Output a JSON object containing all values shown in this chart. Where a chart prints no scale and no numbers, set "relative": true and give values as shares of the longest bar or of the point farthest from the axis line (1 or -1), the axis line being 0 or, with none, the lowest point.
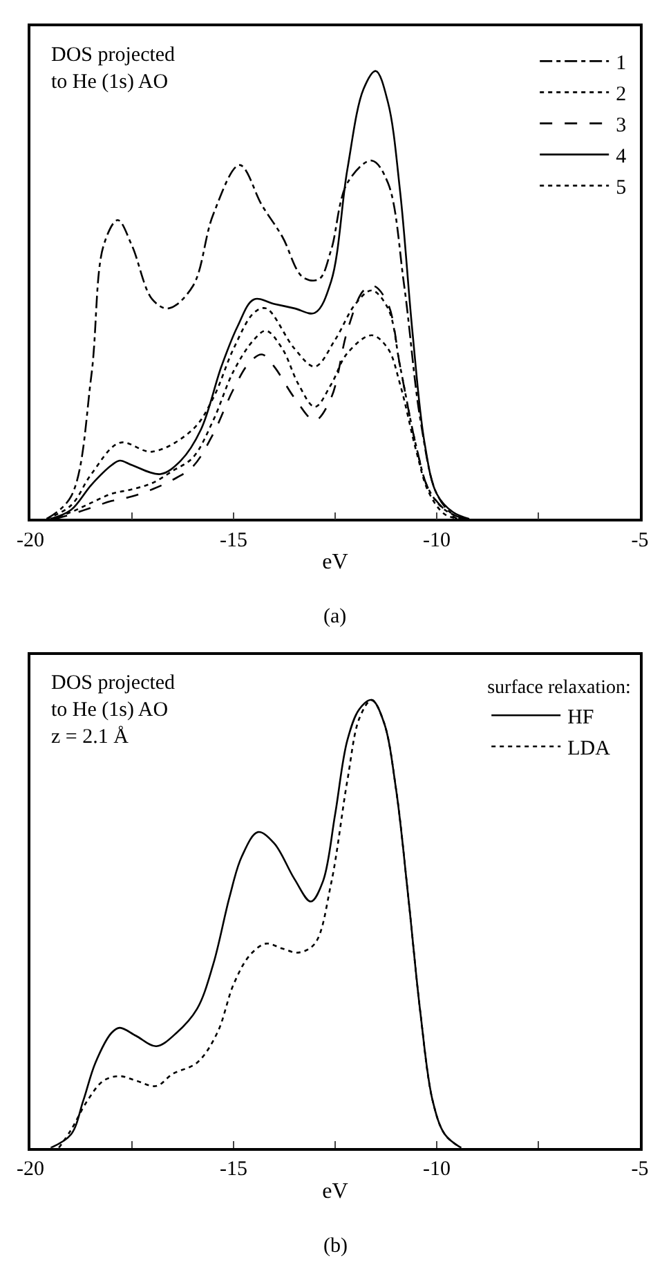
{
  "chart_data": [
    {
      "type": "line",
      "title": "(a)",
      "xlabel": "eV",
      "relative": true,
      "legend": "top right",
      "xlim": [
        -20,
        -5
      ],
      "xticks": [
        -20,
        {
          "value": -17.5,
          "label": null
        },
        -15,
        {
          "value": -12.5,
          "label": null
        },
        -10,
        {
          "value": -7.5,
          "label": null
        },
        -5
      ],
      "annotations": [
        "DOS projected\nto He (1s) AO"
      ],
      "series": [
        {
          "name": "1",
          "color": "#000000",
          "line_style": "dashdot",
          "x": [
            -19.6,
            -19.0,
            -18.5,
            -18.2,
            -17.85,
            -17.5,
            -17.0,
            -16.6,
            -16.0,
            -15.5,
            -14.85,
            -14.3,
            -13.8,
            -13.3,
            -12.9,
            -12.6,
            -12.2,
            -11.6,
            -11.2,
            -10.8,
            -10.4,
            -10.0,
            -9.6,
            -9.2
          ],
          "values": [
            0,
            0.05,
            0.32,
            0.61,
            0.667,
            0.61,
            0.49,
            0.47,
            0.52,
            0.68,
            0.79,
            0.7,
            0.63,
            0.54,
            0.535,
            0.6,
            0.75,
            0.8,
            0.75,
            0.52,
            0.22,
            0.056,
            0.01,
            0
          ]
        },
        {
          "name": "2",
          "color": "#000000",
          "line_style": "dotted",
          "x": [
            -19.5,
            -19.0,
            -18.5,
            -18.0,
            -17.5,
            -17.0,
            -16.5,
            -16.0,
            -15.5,
            -15.0,
            -14.5,
            -14.2,
            -13.8,
            -13.4,
            -13.0,
            -12.6,
            -12.2,
            -11.6,
            -11.2,
            -10.9,
            -10.5,
            -10.2,
            -9.8,
            -9.4
          ],
          "values": [
            0,
            0.015,
            0.036,
            0.056,
            0.066,
            0.08,
            0.107,
            0.137,
            0.22,
            0.33,
            0.4,
            0.42,
            0.38,
            0.3,
            0.25,
            0.3,
            0.37,
            0.41,
            0.38,
            0.3,
            0.15,
            0.06,
            0.01,
            0
          ]
        },
        {
          "name": "3",
          "color": "#000000",
          "line_style": "dashed",
          "x": [
            -19.4,
            -19.0,
            -18.5,
            -18.0,
            -17.5,
            -17.0,
            -16.5,
            -16.0,
            -15.5,
            -15.0,
            -14.6,
            -14.3,
            -14.0,
            -13.5,
            -13.0,
            -12.6,
            -12.2,
            -11.8,
            -11.55,
            -11.2,
            -10.9,
            -10.5,
            -10.2,
            -9.8,
            -9.5
          ],
          "values": [
            0,
            0.01,
            0.025,
            0.04,
            0.05,
            0.066,
            0.087,
            0.117,
            0.19,
            0.29,
            0.35,
            0.367,
            0.34,
            0.27,
            0.22,
            0.27,
            0.42,
            0.51,
            0.52,
            0.48,
            0.34,
            0.16,
            0.066,
            0.02,
            0
          ]
        },
        {
          "name": "4",
          "color": "#000000",
          "line_style": "solid",
          "x": [
            -19.5,
            -19.0,
            -18.5,
            -18.0,
            -17.8,
            -17.5,
            -16.8,
            -16.3,
            -15.8,
            -15.3,
            -14.9,
            -14.5,
            -14.0,
            -13.5,
            -13.0,
            -12.6,
            -12.2,
            -11.8,
            -11.5,
            -11.2,
            -10.9,
            -10.6,
            -10.3,
            -10.0,
            -9.6,
            -9.2
          ],
          "values": [
            0,
            0.02,
            0.076,
            0.12,
            0.13,
            0.12,
            0.1,
            0.13,
            0.2,
            0.34,
            0.43,
            0.49,
            0.48,
            0.47,
            0.46,
            0.53,
            0.78,
            0.96,
            1,
            0.93,
            0.73,
            0.42,
            0.17,
            0.056,
            0.015,
            0
          ]
        },
        {
          "name": "5",
          "color": "#000000",
          "line_style": "dotted",
          "x": [
            -19.6,
            -19.0,
            -18.5,
            -17.8,
            -17.0,
            -16.0,
            -15.5,
            -15.0,
            -14.5,
            -14.2,
            -13.5,
            -13.0,
            -12.5,
            -12.0,
            -11.6,
            -11.2,
            -10.9,
            -10.5,
            -10.2,
            -9.8,
            -9.3
          ],
          "values": [
            0,
            0.03,
            0.1,
            0.17,
            0.15,
            0.2,
            0.27,
            0.38,
            0.46,
            0.47,
            0.38,
            0.34,
            0.4,
            0.48,
            0.51,
            0.47,
            0.34,
            0.16,
            0.066,
            0.02,
            0
          ]
        }
      ]
    },
    {
      "type": "line",
      "title": "(b)",
      "xlabel": "eV",
      "relative": true,
      "legend": "top right",
      "legend_title": "surface relaxation:",
      "xlim": [
        -20,
        -5
      ],
      "xticks": [
        -20,
        {
          "value": -17.5,
          "label": null
        },
        -15,
        {
          "value": -12.5,
          "label": null
        },
        -10,
        {
          "value": -7.5,
          "label": null
        },
        -5
      ],
      "annotations": [
        "DOS projected\nto He (1s) AO\nz = 2.1 Å"
      ],
      "series": [
        {
          "name": "HF",
          "color": "#000000",
          "line_style": "solid",
          "x": [
            -19.5,
            -19.0,
            -18.7,
            -18.4,
            -18.0,
            -17.8,
            -17.4,
            -16.9,
            -16.4,
            -15.9,
            -15.5,
            -15.1,
            -14.8,
            -14.4,
            -14.0,
            -13.5,
            -13.1,
            -12.8,
            -12.5,
            -12.2,
            -11.9,
            -11.6,
            -11.3,
            -11.0,
            -10.7,
            -10.4,
            -10.1,
            -9.8,
            -9.4
          ],
          "values": [
            0,
            0.03,
            0.105,
            0.19,
            0.257,
            0.268,
            0.25,
            0.227,
            0.257,
            0.31,
            0.41,
            0.56,
            0.65,
            0.705,
            0.68,
            0.6,
            0.55,
            0.595,
            0.745,
            0.91,
            0.98,
            1,
            0.95,
            0.8,
            0.56,
            0.3,
            0.105,
            0.03,
            0
          ]
        },
        {
          "name": "LDA",
          "color": "#000000",
          "line_style": "dotted",
          "x": [
            -19.3,
            -19.0,
            -18.6,
            -18.2,
            -17.8,
            -17.4,
            -16.9,
            -16.5,
            -15.9,
            -15.4,
            -15.0,
            -14.6,
            -14.2,
            -13.8,
            -13.4,
            -13.0,
            -12.6,
            -12.2,
            -11.9,
            -11.6,
            -11.3,
            -11.0,
            -10.7,
            -10.4,
            -10.1,
            -9.8,
            -9.4
          ],
          "values": [
            0,
            0.04,
            0.105,
            0.15,
            0.16,
            0.15,
            0.138,
            0.165,
            0.19,
            0.257,
            0.365,
            0.43,
            0.456,
            0.445,
            0.436,
            0.456,
            0.59,
            0.82,
            0.96,
            1,
            0.95,
            0.8,
            0.56,
            0.3,
            0.105,
            0.03,
            0
          ]
        }
      ]
    }
  ]
}
